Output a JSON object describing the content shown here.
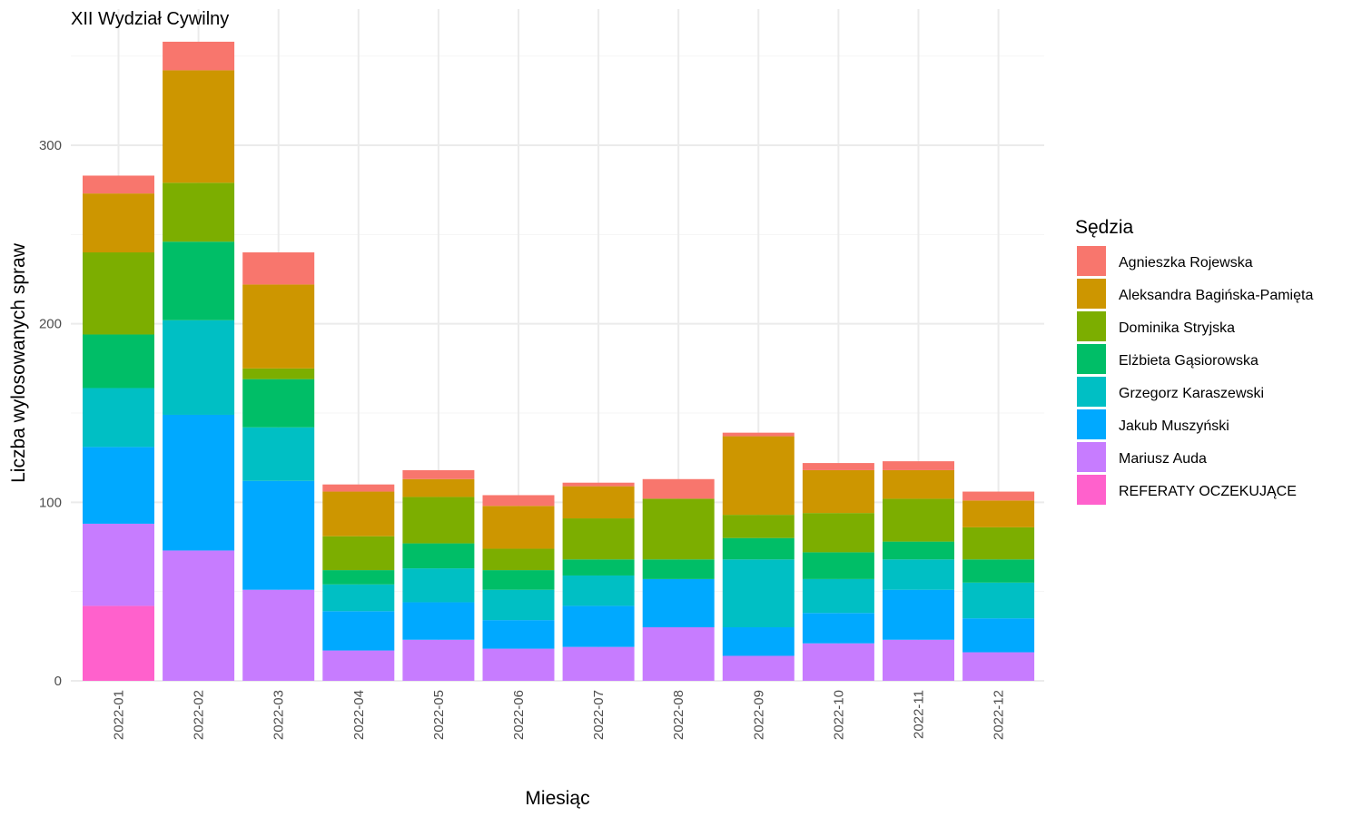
{
  "chart_data": {
    "type": "bar",
    "stacked": true,
    "title": "XII Wydział Cywilny",
    "xlabel": "Miesiąc",
    "ylabel": "Liczba wylosowanych spraw",
    "ylim": [
      0,
      360
    ],
    "yticks": [
      0,
      100,
      200,
      300
    ],
    "grid": true,
    "legend": {
      "title": "Sędzia",
      "position": "right"
    },
    "categories": [
      "2022-01",
      "2022-02",
      "2022-03",
      "2022-04",
      "2022-05",
      "2022-06",
      "2022-07",
      "2022-08",
      "2022-09",
      "2022-10",
      "2022-11",
      "2022-12"
    ],
    "series": [
      {
        "name": "REFERATY OCZEKUJĄCE",
        "color": "#FF61CC",
        "values": [
          42,
          0,
          0,
          0,
          0,
          0,
          0,
          0,
          0,
          0,
          0,
          0
        ]
      },
      {
        "name": "Mariusz Auda",
        "color": "#C77CFF",
        "values": [
          46,
          73,
          51,
          17,
          23,
          18,
          19,
          30,
          14,
          21,
          23,
          16
        ]
      },
      {
        "name": "Jakub Muszyński",
        "color": "#00A9FF",
        "values": [
          43,
          76,
          61,
          22,
          21,
          16,
          23,
          27,
          16,
          17,
          28,
          19
        ]
      },
      {
        "name": "Grzegorz Karaszewski",
        "color": "#00BFC4",
        "values": [
          33,
          53,
          30,
          15,
          19,
          17,
          17,
          0,
          38,
          19,
          17,
          20
        ]
      },
      {
        "name": "Elżbieta Gąsiorowska",
        "color": "#00BE67",
        "values": [
          30,
          44,
          27,
          8,
          14,
          11,
          9,
          11,
          12,
          15,
          10,
          13
        ]
      },
      {
        "name": "Dominika Stryjska",
        "color": "#7CAE00",
        "values": [
          46,
          33,
          6,
          19,
          26,
          12,
          23,
          34,
          13,
          22,
          24,
          18
        ]
      },
      {
        "name": "Aleksandra Bagińska-Pamięta",
        "color": "#CD9600",
        "values": [
          33,
          63,
          47,
          25,
          10,
          24,
          18,
          0,
          44,
          24,
          16,
          15
        ]
      },
      {
        "name": "Agnieszka Rojewska",
        "color": "#F8766D",
        "values": [
          10,
          16,
          18,
          4,
          5,
          6,
          2,
          11,
          2,
          4,
          5,
          5
        ]
      }
    ],
    "legend_order": [
      "Agnieszka Rojewska",
      "Aleksandra Bagińska-Pamięta",
      "Dominika Stryjska",
      "Elżbieta Gąsiorowska",
      "Grzegorz Karaszewski",
      "Jakub Muszyński",
      "Mariusz Auda",
      "REFERATY OCZEKUJĄCE"
    ]
  }
}
